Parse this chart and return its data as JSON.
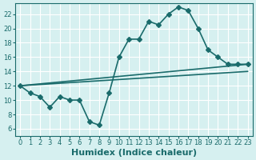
{
  "xlabel": "Humidex (Indice chaleur)",
  "ylabel": "",
  "bg_color": "#d6f0f0",
  "line_color": "#1a6b6b",
  "grid_color": "#ffffff",
  "xlim": [
    -0.5,
    23.5
  ],
  "ylim": [
    5,
    23.5
  ],
  "yticks": [
    6,
    8,
    10,
    12,
    14,
    16,
    18,
    20,
    22
  ],
  "xticks": [
    0,
    1,
    2,
    3,
    4,
    5,
    6,
    7,
    8,
    9,
    10,
    11,
    12,
    13,
    14,
    15,
    16,
    17,
    18,
    19,
    20,
    21,
    22,
    23
  ],
  "line1_x": [
    0,
    1,
    2,
    3,
    4,
    5,
    6,
    7,
    8,
    9,
    10,
    11,
    12,
    13,
    14,
    15,
    16,
    17,
    18,
    19,
    20,
    21,
    22,
    23
  ],
  "line1_y": [
    12,
    11,
    10.5,
    9,
    10.5,
    10,
    10,
    7,
    6.5,
    11,
    16,
    18.5,
    18.5,
    21,
    20.5,
    22,
    23,
    22.5,
    20,
    17,
    16,
    15,
    15,
    15
  ],
  "line2_x": [
    0,
    23
  ],
  "line2_y": [
    12,
    15
  ],
  "line3_x": [
    0,
    23
  ],
  "line3_y": [
    12,
    14
  ],
  "marker_size": 3,
  "line_width": 1.2,
  "font_size_label": 8,
  "tick_font_size": 6
}
